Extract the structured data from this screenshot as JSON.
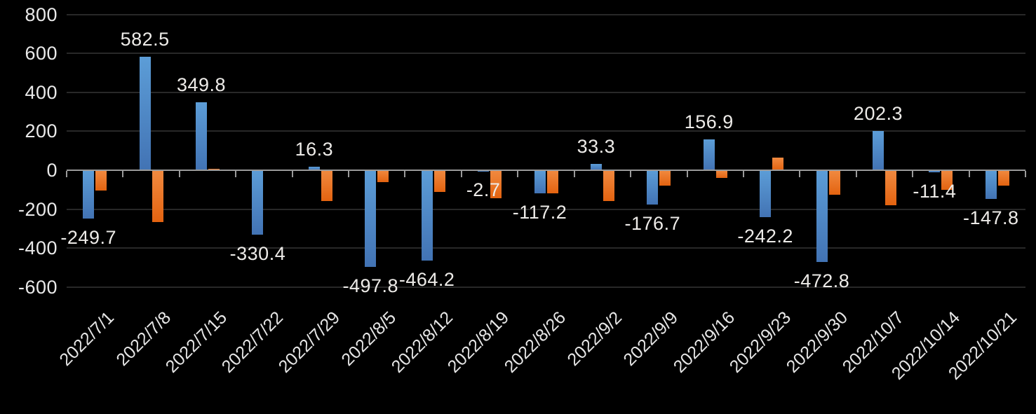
{
  "chart_data": {
    "type": "bar",
    "title": "",
    "legend": "none",
    "grid": true,
    "background": "#000000",
    "categories": [
      "2022/7/1",
      "2022/7/8",
      "2022/7/15",
      "2022/7/22",
      "2022/7/29",
      "2022/8/5",
      "2022/8/12",
      "2022/8/19",
      "2022/8/26",
      "2022/9/2",
      "2022/9/9",
      "2022/9/16",
      "2022/9/23",
      "2022/9/30",
      "2022/10/7",
      "2022/10/14",
      "2022/10/21"
    ],
    "series": [
      {
        "name": "blue",
        "color": "#5b9bd5",
        "color_gradient_bottom": "#4273b4",
        "values": [
          -249.7,
          582.5,
          349.8,
          -330.4,
          16.3,
          -497.8,
          -464.2,
          -2.7,
          -117.2,
          33.3,
          -176.7,
          156.9,
          -242.2,
          -472.8,
          202.3,
          -11.4,
          -147.8
        ],
        "data_labels": [
          "-249.7",
          "582.5",
          "349.8",
          "-330.4",
          "16.3",
          "-497.8",
          "-464.2",
          "-2.7",
          "-117.2",
          "33.3",
          "-176.7",
          "156.9",
          "-242.2",
          "-472.8",
          "202.3",
          "-11.4",
          "-147.8"
        ]
      },
      {
        "name": "orange",
        "color": "#ed7d31",
        "color_gradient_bottom": "#e36310",
        "values": [
          -103,
          -265,
          6,
          0,
          -160,
          -60,
          -110,
          -145,
          -120,
          -160,
          -80,
          -40,
          65,
          -125,
          -180,
          -100,
          -80
        ],
        "data_labels": []
      }
    ],
    "y_axis": {
      "tick_labels": [
        "800",
        "600",
        "400",
        "200",
        "0",
        "-200",
        "-400",
        "-600"
      ],
      "tick_values": [
        800,
        600,
        400,
        200,
        0,
        -200,
        -400,
        -600
      ],
      "min": -600,
      "max": 800
    },
    "colors": {
      "gridline": "#282828",
      "axis_line": "#9a9a9a",
      "axis_text": "#e9e9e9",
      "data_label_text": "#edebe8"
    }
  }
}
